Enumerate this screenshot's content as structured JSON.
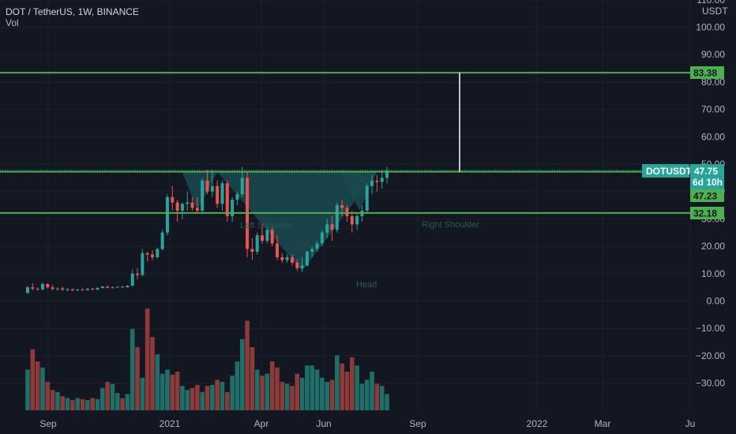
{
  "header": {
    "symbol_line": "DOT / TetherUS, 1W, BINANCE",
    "indicator": "Vol"
  },
  "colors": {
    "background": "#131722",
    "up": "#26a69a",
    "down": "#ef5350",
    "up_volume": "#1f6e68",
    "down_volume": "#8d3a3a",
    "level_line": "#4caf50",
    "pattern_fill": "#1b4a4f",
    "pattern_label": "#2a5955",
    "target_line": "#ffffff"
  },
  "price_axis": {
    "currency": "USDT",
    "ticks": [
      "110.00",
      "100.00",
      "90.00",
      "80.00",
      "70.00",
      "60.00",
      "50.00",
      "40.00",
      "30.00",
      "20.00",
      "10.00",
      "0.00",
      "−10.00",
      "−20.00",
      "−30.00"
    ]
  },
  "time_axis": {
    "ticks": [
      "Sep",
      "2021",
      "Apr",
      "Jun",
      "Sep",
      "2022",
      "Mar",
      "Ju"
    ]
  },
  "tags": {
    "resistance": "83.38",
    "symbol": "DOTUSDT",
    "last_price": "47.75",
    "countdown": "6d 10h",
    "neckline": "47.23",
    "support": "32.18"
  },
  "pattern_labels": {
    "left": "Left Shoulder",
    "head": "Head",
    "right": "Right Shoulder"
  },
  "chart_data": {
    "type": "candlestick",
    "symbol": "DOT / TetherUS",
    "interval": "1W",
    "exchange": "BINANCE",
    "y_range": [
      -35,
      112
    ],
    "horizontal_levels": [
      83.38,
      47.23,
      32.18
    ],
    "last_price": 47.75,
    "candles": [
      [
        3.0,
        5.5,
        2.5,
        5.0
      ],
      [
        5.0,
        6.5,
        4.0,
        4.5
      ],
      [
        4.5,
        5.0,
        3.8,
        4.2
      ],
      [
        4.2,
        6.8,
        4.0,
        6.2
      ],
      [
        6.2,
        6.5,
        4.5,
        5.0
      ],
      [
        5.0,
        5.8,
        4.0,
        4.4
      ],
      [
        4.4,
        5.0,
        3.8,
        4.6
      ],
      [
        4.6,
        5.2,
        3.9,
        4.1
      ],
      [
        4.1,
        4.8,
        3.6,
        4.3
      ],
      [
        4.3,
        4.6,
        3.7,
        3.9
      ],
      [
        3.9,
        4.4,
        3.5,
        4.2
      ],
      [
        4.2,
        4.8,
        3.9,
        4.0
      ],
      [
        4.0,
        4.7,
        3.8,
        4.5
      ],
      [
        4.5,
        4.9,
        4.0,
        4.2
      ],
      [
        4.2,
        5.0,
        4.0,
        4.8
      ],
      [
        4.8,
        5.5,
        4.5,
        5.3
      ],
      [
        5.3,
        5.6,
        4.7,
        4.9
      ],
      [
        4.9,
        5.3,
        4.6,
        5.0
      ],
      [
        5.0,
        5.4,
        4.8,
        5.2
      ],
      [
        5.2,
        5.6,
        4.9,
        5.0
      ],
      [
        5.0,
        5.8,
        4.9,
        5.6
      ],
      [
        5.6,
        11.5,
        5.4,
        10.0
      ],
      [
        10.0,
        12.0,
        8.0,
        9.5
      ],
      [
        9.5,
        19.0,
        9.0,
        17.5
      ],
      [
        17.5,
        18.0,
        14.5,
        17.0
      ],
      [
        17.0,
        18.5,
        15.0,
        16.0
      ],
      [
        16.0,
        19.5,
        15.5,
        19.0
      ],
      [
        19.0,
        26.0,
        18.5,
        25.0
      ],
      [
        25.0,
        39.0,
        24.0,
        38.0
      ],
      [
        38.0,
        42.0,
        33.0,
        36.0
      ],
      [
        36.0,
        37.0,
        29.0,
        33.0
      ],
      [
        33.0,
        36.0,
        30.0,
        35.5
      ],
      [
        35.5,
        40.0,
        33.0,
        36.0
      ],
      [
        36.0,
        38.0,
        33.0,
        34.0
      ],
      [
        34.0,
        38.0,
        32.0,
        33.0
      ],
      [
        33.0,
        45.0,
        32.0,
        44.0
      ],
      [
        44.0,
        48.0,
        39.0,
        40.0
      ],
      [
        40.0,
        48.0,
        38.0,
        42.0
      ],
      [
        42.0,
        44.0,
        34.0,
        35.5
      ],
      [
        35.5,
        44.0,
        33.0,
        43.0
      ],
      [
        43.0,
        44.0,
        29.0,
        31.0
      ],
      [
        31.0,
        38.0,
        29.0,
        37.0
      ],
      [
        37.0,
        40.0,
        35.0,
        39.0
      ],
      [
        39.0,
        49.0,
        38.0,
        45.0
      ],
      [
        45.0,
        47.0,
        16.0,
        19.0
      ],
      [
        19.0,
        23.0,
        15.0,
        18.0
      ],
      [
        18.0,
        25.0,
        17.0,
        24.0
      ],
      [
        24.0,
        28.0,
        21.0,
        22.0
      ],
      [
        22.0,
        27.0,
        21.0,
        26.0
      ],
      [
        26.0,
        27.0,
        20.0,
        21.0
      ],
      [
        21.0,
        24.0,
        15.0,
        16.0
      ],
      [
        16.0,
        17.5,
        14.0,
        15.0
      ],
      [
        15.0,
        17.0,
        14.0,
        16.0
      ],
      [
        16.0,
        17.0,
        13.0,
        14.0
      ],
      [
        14.0,
        15.0,
        11.0,
        12.0
      ],
      [
        12.0,
        16.0,
        10.5,
        13.0
      ],
      [
        13.0,
        18.5,
        12.5,
        18.0
      ],
      [
        18.0,
        20.0,
        16.0,
        19.0
      ],
      [
        19.0,
        22.0,
        18.0,
        21.0
      ],
      [
        21.0,
        26.0,
        20.0,
        25.0
      ],
      [
        25.0,
        30.0,
        23.0,
        28.0
      ],
      [
        28.0,
        31.0,
        22.0,
        26.0
      ],
      [
        26.0,
        36.0,
        25.0,
        35.0
      ],
      [
        35.0,
        37.0,
        31.0,
        34.0
      ],
      [
        34.0,
        35.0,
        29.0,
        31.0
      ],
      [
        31.0,
        33.0,
        25.0,
        28.0
      ],
      [
        28.0,
        32.0,
        26.0,
        31.0
      ],
      [
        31.0,
        35.0,
        29.0,
        33.0
      ],
      [
        33.0,
        43.0,
        32.0,
        42.0
      ],
      [
        42.0,
        46.0,
        39.0,
        44.0
      ],
      [
        44.0,
        46.0,
        40.0,
        43.5
      ],
      [
        43.5,
        48.0,
        41.0,
        45.0
      ],
      [
        45.0,
        49.0,
        43.0,
        47.75
      ]
    ],
    "volume_relative": [
      0.4,
      0.6,
      0.48,
      0.42,
      0.28,
      0.2,
      0.18,
      0.14,
      0.12,
      0.1,
      0.12,
      0.11,
      0.1,
      0.12,
      0.11,
      0.22,
      0.28,
      0.26,
      0.17,
      0.12,
      0.16,
      0.8,
      0.62,
      0.32,
      1.0,
      0.72,
      0.55,
      0.36,
      0.4,
      0.35,
      0.38,
      0.24,
      0.2,
      0.22,
      0.25,
      0.18,
      0.24,
      0.25,
      0.3,
      0.28,
      0.18,
      0.34,
      0.48,
      0.7,
      0.88,
      0.62,
      0.4,
      0.34,
      0.36,
      0.48,
      0.42,
      0.28,
      0.26,
      0.24,
      0.36,
      0.32,
      0.44,
      0.44,
      0.4,
      0.32,
      0.28,
      0.3,
      0.54,
      0.46,
      0.38,
      0.52,
      0.44,
      0.26,
      0.3,
      0.38,
      0.26,
      0.24,
      0.16
    ],
    "patterns": [
      {
        "type": "head_and_shoulders",
        "labels": [
          "Left Shoulder",
          "Head",
          "Right Shoulder"
        ]
      }
    ]
  }
}
